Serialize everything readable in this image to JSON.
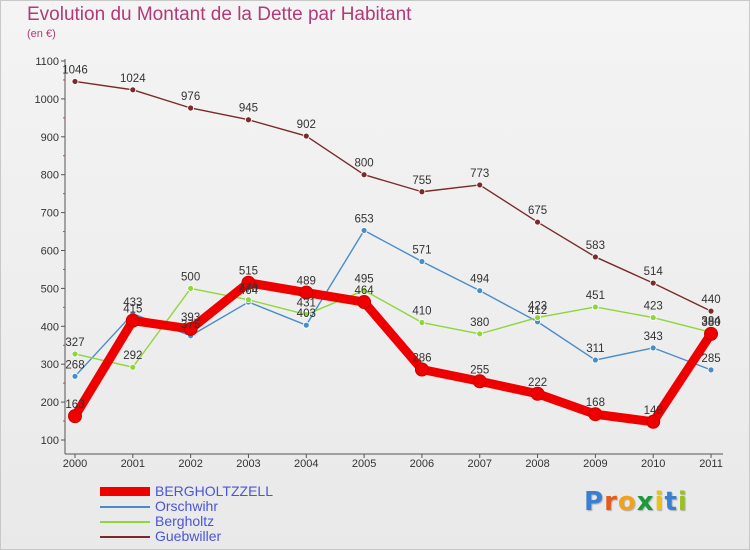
{
  "title": "Evolution du Montant de la Dette par Habitant",
  "subtitle": "(en €)",
  "logo": {
    "letters": [
      "P",
      "r",
      "o",
      "x",
      "i",
      "t",
      "i"
    ],
    "colors": [
      "#3a7fd0",
      "#e85a1a",
      "#f1a21a",
      "#1a9a3a",
      "#e8c21a",
      "#3a7fd0",
      "#9ac21a"
    ]
  },
  "chart_data": {
    "type": "line",
    "x": [
      "2000",
      "2001",
      "2002",
      "2003",
      "2004",
      "2005",
      "2006",
      "2007",
      "2008",
      "2009",
      "2010",
      "2011"
    ],
    "ylim": [
      100,
      1100
    ],
    "yticks": [
      "100",
      "200",
      "300",
      "400",
      "500",
      "600",
      "700",
      "800",
      "900",
      "1000",
      "1100"
    ],
    "grid": false,
    "legend_position": "bottom-left",
    "series": [
      {
        "name": "Guebwiller",
        "color": "#7a2a2a",
        "style": "thin",
        "values": [
          1046,
          1024,
          976,
          945,
          902,
          800,
          755,
          773,
          675,
          583,
          514,
          440
        ],
        "labels": [
          "1046",
          "1024",
          "976",
          "945",
          "902",
          "800",
          "755",
          "773",
          "675",
          "583",
          "514",
          "440"
        ]
      },
      {
        "name": "Orschwihr",
        "color": "#4a8cc8",
        "style": "thin",
        "values": [
          268,
          433,
          375,
          464,
          403,
          653,
          571,
          494,
          412,
          311,
          343,
          285
        ],
        "labels": [
          "268",
          "433",
          "375",
          "464",
          "403",
          "653",
          "571",
          "494",
          "412",
          "311",
          "343",
          "285"
        ]
      },
      {
        "name": "Bergholtz",
        "color": "#8fd63a",
        "style": "thin",
        "values": [
          327,
          292,
          500,
          470,
          431,
          495,
          410,
          380,
          423,
          451,
          423,
          384
        ],
        "labels": [
          "327",
          "292",
          "500",
          "470",
          "431",
          "495",
          "410",
          "380",
          "423",
          "451",
          "423",
          "384"
        ]
      },
      {
        "name": "BERGHOLTZZELL",
        "color": "#ee0000",
        "style": "thick",
        "values": [
          163,
          415,
          393,
          515,
          489,
          464,
          286,
          255,
          222,
          168,
          148,
          380
        ],
        "labels": [
          "163",
          "415",
          "393",
          "515",
          "489",
          "464",
          "286",
          "255",
          "222",
          "168",
          "148",
          "380"
        ]
      }
    ],
    "legend_order": [
      "BERGHOLTZZELL",
      "Orschwihr",
      "Bergholtz",
      "Guebwiller"
    ]
  }
}
